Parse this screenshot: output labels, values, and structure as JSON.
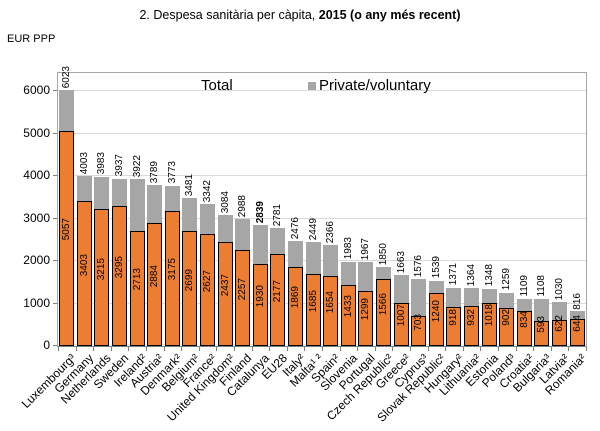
{
  "page": {
    "title_regular": "2. Despesa sanitària per càpita, ",
    "title_bold": "2015 (o any més recent)"
  },
  "chart_data": {
    "type": "bar",
    "stacked": true,
    "title": "2. Despesa sanitària per càpita, 2015 (o any més recent)",
    "ylabel": "EUR PPP",
    "xlabel": "",
    "ylim": [
      0,
      6423
    ],
    "yticks": [
      0,
      1000,
      2000,
      3000,
      4000,
      5000,
      6000
    ],
    "grid": true,
    "legend": {
      "position": "top-inside",
      "items": [
        {
          "label": "Total",
          "swatch": null
        },
        {
          "label": "Private/voluntary",
          "swatch": "#A6A6A6"
        }
      ]
    },
    "colors": {
      "public_bar": "#ED7D31",
      "public_bar_border": "#000000",
      "private_bar": "#A6A6A6",
      "gridline": "#D9D9D9",
      "axis_frame": "#A6A6A6"
    },
    "bars": [
      {
        "country": "Luxembourg³",
        "total": 6023,
        "public": 5057
      },
      {
        "country": "Germany",
        "total": 4003,
        "public": 3403
      },
      {
        "country": "Netherlands",
        "total": 3983,
        "public": 3215
      },
      {
        "country": "Sweden",
        "total": 3937,
        "public": 3295
      },
      {
        "country": "Ireland²",
        "total": 3922,
        "public": 2713
      },
      {
        "country": "Austria²",
        "total": 3789,
        "public": 2884
      },
      {
        "country": "Denmark²",
        "total": 3773,
        "public": 3175
      },
      {
        "country": "Belgium²",
        "total": 3481,
        "public": 2699
      },
      {
        "country": "France²",
        "total": 3342,
        "public": 2627
      },
      {
        "country": "United Kingdom²",
        "total": 3084,
        "public": 2437
      },
      {
        "country": "Finland",
        "total": 2988,
        "public": 2257
      },
      {
        "country": "Catalunya",
        "total": 2839,
        "public": 1930,
        "bold_total": true
      },
      {
        "country": "EU28",
        "total": 2781,
        "public": 2177
      },
      {
        "country": "Italy²",
        "total": 2476,
        "public": 1869
      },
      {
        "country": "Malta¹ ²",
        "total": 2449,
        "public": 1685
      },
      {
        "country": "Spain²",
        "total": 2366,
        "public": 1654
      },
      {
        "country": "Slovenia",
        "total": 1983,
        "public": 1433
      },
      {
        "country": "Portugal",
        "total": 1967,
        "public": 1299
      },
      {
        "country": "Czech Republic²",
        "total": 1850,
        "public": 1566
      },
      {
        "country": "Greece²",
        "total": 1663,
        "public": 1007
      },
      {
        "country": "Cyprus³",
        "total": 1576,
        "public": 703
      },
      {
        "country": "Slovak Republic²",
        "total": 1539,
        "public": 1240
      },
      {
        "country": "Hungary²",
        "total": 1371,
        "public": 918
      },
      {
        "country": "Lithuania²",
        "total": 1364,
        "public": 932
      },
      {
        "country": "Estonia",
        "total": 1348,
        "public": 1018
      },
      {
        "country": "Poland³",
        "total": 1259,
        "public": 902
      },
      {
        "country": "Croatia²",
        "total": 1109,
        "public": 834
      },
      {
        "country": "Bulgaria³",
        "total": 1108,
        "public": 593
      },
      {
        "country": "Latvia²",
        "total": 1030,
        "public": 622
      },
      {
        "country": "Romania²",
        "total": 816,
        "public": 644
      }
    ]
  }
}
